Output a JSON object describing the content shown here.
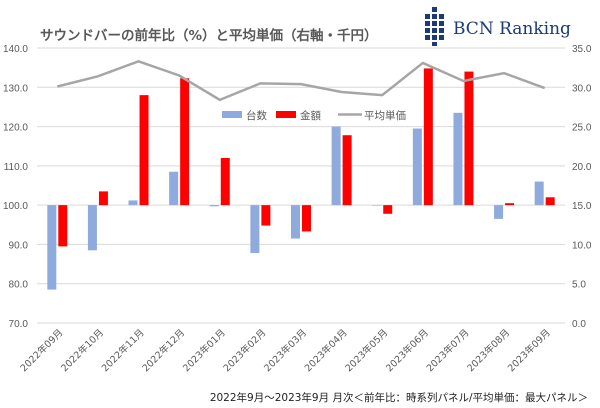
{
  "chart_data": {
    "type": "bar",
    "title": "サウンドバーの前年比（%）と平均単価（右軸・千円）",
    "categories": [
      "2022年09月",
      "2022年10月",
      "2022年11月",
      "2022年12月",
      "2023年01月",
      "2023年02月",
      "2023年03月",
      "2023年04月",
      "2023年05月",
      "2023年06月",
      "2023年07月",
      "2023年08月",
      "2023年09月"
    ],
    "series": [
      {
        "name": "台数",
        "type": "bar",
        "axis": "left",
        "color": "#8faadc",
        "values": [
          78.5,
          88.5,
          101.2,
          108.5,
          99.7,
          87.8,
          91.5,
          120.0,
          100.0,
          119.5,
          123.5,
          96.5,
          106.0
        ]
      },
      {
        "name": "金額",
        "type": "bar",
        "axis": "left",
        "color": "#ff0000",
        "values": [
          89.5,
          103.5,
          128.0,
          132.3,
          112.0,
          94.8,
          93.3,
          117.8,
          97.8,
          134.8,
          134.0,
          100.5,
          102.0
        ]
      },
      {
        "name": "平均単価",
        "type": "line",
        "axis": "right",
        "color": "#a6a6a6",
        "values": [
          30.1,
          31.4,
          33.3,
          31.5,
          28.4,
          30.5,
          30.4,
          29.4,
          29.0,
          33.1,
          30.8,
          31.8,
          29.9
        ]
      }
    ],
    "ylim": [
      70,
      140
    ],
    "yticks": [
      "70.0",
      "80.0",
      "90.0",
      "100.0",
      "110.0",
      "120.0",
      "130.0",
      "140.0"
    ],
    "y2lim": [
      0,
      35
    ],
    "y2ticks": [
      "0.0",
      "5.0",
      "10.0",
      "15.0",
      "20.0",
      "25.0",
      "30.0",
      "35.0"
    ],
    "bar_baseline": 100,
    "legend_position": "inside-top-center",
    "grid": true
  },
  "logo_text": "BCN Ranking",
  "footnote": "2022年9月～2023年9月 月次＜前年比：時系列パネル/平均単価：最大パネル＞"
}
